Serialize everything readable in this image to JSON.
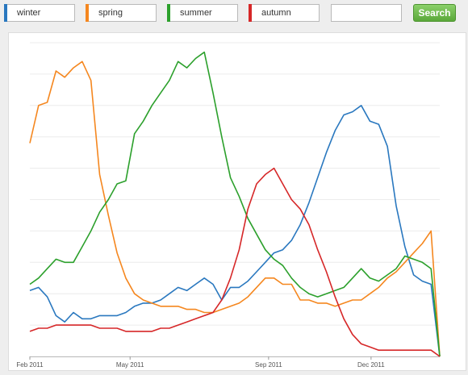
{
  "search_bar": {
    "terms": [
      {
        "label": "winter",
        "color": "#2a78bf"
      },
      {
        "label": "spring",
        "color": "#f5871f"
      },
      {
        "label": "summer",
        "color": "#2ca02c"
      },
      {
        "label": "autumn",
        "color": "#d62728"
      }
    ],
    "extra_input_value": "",
    "search_button_label": "Search"
  },
  "chart_data": {
    "type": "line",
    "x_ticks": [
      "Feb 2011",
      "May 2011",
      "Sep 2011",
      "Dec 2011"
    ],
    "x_start": "2011-02-01",
    "x_end": "2012-01-31",
    "ylim": [
      0,
      100
    ],
    "grid": true,
    "series": [
      {
        "name": "winter",
        "color": "#2a78bf",
        "values": [
          21,
          22,
          19,
          13,
          11,
          14,
          12,
          12,
          13,
          13,
          13,
          14,
          16,
          17,
          17,
          18,
          20,
          22,
          21,
          23,
          25,
          23,
          18,
          22,
          22,
          24,
          27,
          30,
          33,
          34,
          37,
          42,
          49,
          57,
          65,
          72,
          77,
          78,
          80,
          75,
          74,
          67,
          48,
          35,
          26,
          24,
          23,
          0
        ]
      },
      {
        "name": "spring",
        "color": "#f5871f",
        "values": [
          68,
          80,
          81,
          91,
          89,
          92,
          94,
          88,
          58,
          45,
          33,
          25,
          20,
          18,
          17,
          16,
          16,
          16,
          15,
          15,
          14,
          14,
          15,
          16,
          17,
          19,
          22,
          25,
          25,
          23,
          23,
          18,
          18,
          17,
          17,
          16,
          17,
          18,
          18,
          20,
          22,
          25,
          27,
          30,
          33,
          36,
          40,
          0
        ]
      },
      {
        "name": "summer",
        "color": "#2ca02c",
        "values": [
          23,
          25,
          28,
          31,
          30,
          30,
          35,
          40,
          46,
          50,
          55,
          56,
          71,
          75,
          80,
          84,
          88,
          94,
          92,
          95,
          97,
          84,
          70,
          57,
          51,
          44,
          39,
          34,
          31,
          29,
          25,
          22,
          20,
          19,
          20,
          21,
          22,
          25,
          28,
          25,
          24,
          26,
          28,
          32,
          31,
          30,
          28,
          0
        ]
      },
      {
        "name": "autumn",
        "color": "#d62728",
        "values": [
          8,
          9,
          9,
          10,
          10,
          10,
          10,
          10,
          9,
          9,
          9,
          8,
          8,
          8,
          8,
          9,
          9,
          10,
          11,
          12,
          13,
          14,
          18,
          25,
          34,
          47,
          55,
          58,
          60,
          55,
          50,
          47,
          42,
          34,
          27,
          19,
          12,
          7,
          4,
          3,
          2,
          2,
          2,
          2,
          2,
          2,
          2,
          0
        ]
      }
    ]
  }
}
